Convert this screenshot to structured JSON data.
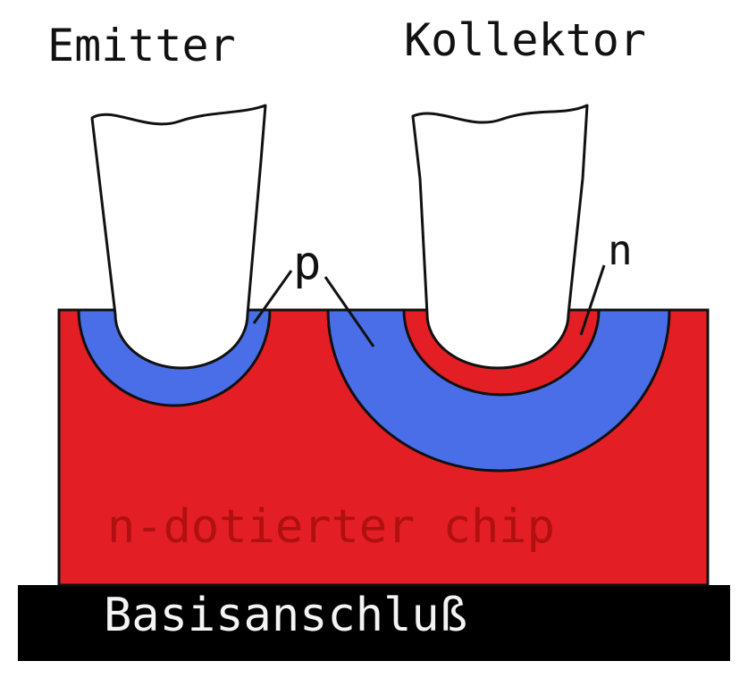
{
  "labels": {
    "emitter": "Emitter",
    "kollektor": "Kollektor",
    "p": "p",
    "n": "n",
    "chip": "n-dotierter chip",
    "base": "Basisanschluß"
  },
  "colors": {
    "n_region": "#e31e24",
    "p_region": "#4a6ee8",
    "base_plate": "#000000",
    "wire_fill": "#ffffff",
    "outline": "#111111"
  }
}
